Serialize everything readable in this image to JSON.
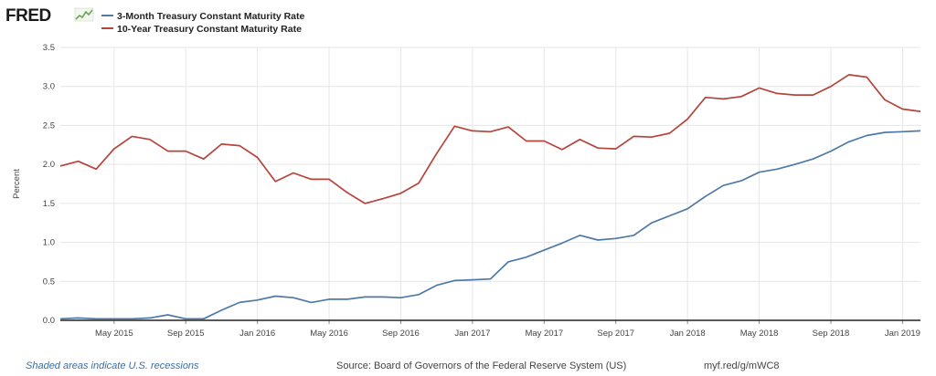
{
  "brand": {
    "logo_text": "FRED",
    "logo_icon": "line-chart-icon"
  },
  "colors": {
    "series1": "#4e79a7",
    "series2": "#b5443c",
    "grid": "#e6e6e6",
    "axis": "#222222"
  },
  "footer": {
    "recession_note": "Shaded areas indicate U.S. recessions",
    "source": "Source: Board of Governors of the Federal Reserve System (US)",
    "url": "myf.red/g/mWC8"
  },
  "chart_data": {
    "type": "line",
    "title": "",
    "xlabel": "",
    "ylabel": "Percent",
    "ylim": [
      0,
      3.5
    ],
    "yticks": [
      "0.0",
      "0.5",
      "1.0",
      "1.5",
      "2.0",
      "2.5",
      "3.0",
      "3.5"
    ],
    "grid": true,
    "legend_position": "top-left",
    "x": [
      "2015-02",
      "2015-03",
      "2015-04",
      "2015-05",
      "2015-06",
      "2015-07",
      "2015-08",
      "2015-09",
      "2015-10",
      "2015-11",
      "2015-12",
      "2016-01",
      "2016-02",
      "2016-03",
      "2016-04",
      "2016-05",
      "2016-06",
      "2016-07",
      "2016-08",
      "2016-09",
      "2016-10",
      "2016-11",
      "2016-12",
      "2017-01",
      "2017-02",
      "2017-03",
      "2017-04",
      "2017-05",
      "2017-06",
      "2017-07",
      "2017-08",
      "2017-09",
      "2017-10",
      "2017-11",
      "2017-12",
      "2018-01",
      "2018-02",
      "2018-03",
      "2018-04",
      "2018-05",
      "2018-06",
      "2018-07",
      "2018-08",
      "2018-09",
      "2018-10",
      "2018-11",
      "2018-12",
      "2019-01",
      "2019-02"
    ],
    "xticks": [
      {
        "label": "May 2015",
        "x": "2015-05"
      },
      {
        "label": "Sep 2015",
        "x": "2015-09"
      },
      {
        "label": "Jan 2016",
        "x": "2016-01"
      },
      {
        "label": "May 2016",
        "x": "2016-05"
      },
      {
        "label": "Sep 2016",
        "x": "2016-09"
      },
      {
        "label": "Jan 2017",
        "x": "2017-01"
      },
      {
        "label": "May 2017",
        "x": "2017-05"
      },
      {
        "label": "Sep 2017",
        "x": "2017-09"
      },
      {
        "label": "Jan 2018",
        "x": "2018-01"
      },
      {
        "label": "May 2018",
        "x": "2018-05"
      },
      {
        "label": "Sep 2018",
        "x": "2018-09"
      },
      {
        "label": "Jan 2019",
        "x": "2019-01"
      }
    ],
    "series": [
      {
        "name": "3-Month Treasury Constant Maturity Rate",
        "values": [
          0.02,
          0.03,
          0.02,
          0.02,
          0.02,
          0.03,
          0.07,
          0.02,
          0.02,
          0.13,
          0.23,
          0.26,
          0.31,
          0.29,
          0.23,
          0.27,
          0.27,
          0.3,
          0.3,
          0.29,
          0.33,
          0.45,
          0.51,
          0.52,
          0.53,
          0.75,
          0.81,
          0.9,
          0.99,
          1.09,
          1.03,
          1.05,
          1.09,
          1.25,
          1.34,
          1.43,
          1.59,
          1.73,
          1.79,
          1.9,
          1.94,
          2.0,
          2.07,
          2.17,
          2.29,
          2.37,
          2.41,
          2.42,
          2.43
        ]
      },
      {
        "name": "10-Year Treasury Constant Maturity Rate",
        "values": [
          1.98,
          2.04,
          1.94,
          2.2,
          2.36,
          2.32,
          2.17,
          2.17,
          2.07,
          2.26,
          2.24,
          2.09,
          1.78,
          1.89,
          1.81,
          1.81,
          1.64,
          1.5,
          1.56,
          1.63,
          1.76,
          2.14,
          2.49,
          2.43,
          2.42,
          2.48,
          2.3,
          2.3,
          2.19,
          2.32,
          2.21,
          2.2,
          2.36,
          2.35,
          2.4,
          2.58,
          2.86,
          2.84,
          2.87,
          2.98,
          2.91,
          2.89,
          2.89,
          3.0,
          3.15,
          3.12,
          2.83,
          2.71,
          2.68
        ]
      }
    ]
  }
}
